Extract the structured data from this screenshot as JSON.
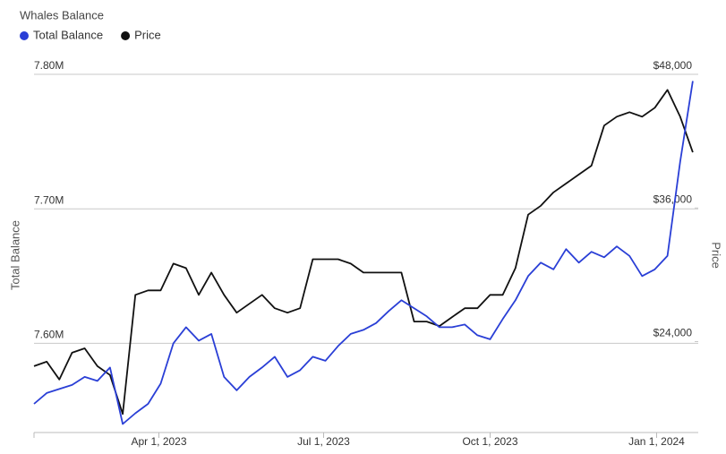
{
  "chart_data": {
    "type": "line",
    "title": "Whales Balance",
    "y_label": "Total Balance",
    "y2_label": "Price",
    "x": [
      "2023-01-22",
      "2023-01-29",
      "2023-02-05",
      "2023-02-12",
      "2023-02-19",
      "2023-02-26",
      "2023-03-05",
      "2023-03-12",
      "2023-03-19",
      "2023-03-26",
      "2023-04-02",
      "2023-04-09",
      "2023-04-16",
      "2023-04-23",
      "2023-04-30",
      "2023-05-07",
      "2023-05-14",
      "2023-05-21",
      "2023-05-28",
      "2023-06-04",
      "2023-06-11",
      "2023-06-18",
      "2023-06-25",
      "2023-07-02",
      "2023-07-09",
      "2023-07-16",
      "2023-07-23",
      "2023-07-30",
      "2023-08-06",
      "2023-08-13",
      "2023-08-20",
      "2023-08-27",
      "2023-09-03",
      "2023-09-10",
      "2023-09-17",
      "2023-09-24",
      "2023-10-01",
      "2023-10-08",
      "2023-10-15",
      "2023-10-22",
      "2023-10-29",
      "2023-11-05",
      "2023-11-12",
      "2023-11-19",
      "2023-11-26",
      "2023-12-03",
      "2023-12-10",
      "2023-12-17",
      "2023-12-24",
      "2023-12-31",
      "2024-01-07",
      "2024-01-14",
      "2024-01-21"
    ],
    "series": [
      {
        "name": "Total Balance",
        "color": "#2a3fd6",
        "axis": "y",
        "values": [
          7555000,
          7563000,
          7566000,
          7569000,
          7575000,
          7572000,
          7582000,
          7540000,
          7548000,
          7555000,
          7570000,
          7600000,
          7612000,
          7602000,
          7607000,
          7575000,
          7565000,
          7575000,
          7582000,
          7590000,
          7575000,
          7580000,
          7590000,
          7587000,
          7598000,
          7607000,
          7610000,
          7615000,
          7624000,
          7632000,
          7626000,
          7620000,
          7612000,
          7612000,
          7614000,
          7606000,
          7603000,
          7618000,
          7632000,
          7650000,
          7660000,
          7655000,
          7670000,
          7660000,
          7668000,
          7664000,
          7672000,
          7665000,
          7650000,
          7655000,
          7665000,
          7735000,
          7795000
        ]
      },
      {
        "name": "Price",
        "color": "#111111",
        "axis": "y2",
        "values": [
          21800,
          22200,
          20600,
          23000,
          23400,
          21800,
          21000,
          17500,
          28200,
          28600,
          28600,
          31000,
          30600,
          28200,
          30200,
          28200,
          26600,
          27400,
          28200,
          27000,
          26600,
          27000,
          31400,
          31400,
          31400,
          31000,
          30200,
          30200,
          30200,
          30200,
          25800,
          25800,
          25400,
          26200,
          27000,
          27000,
          28200,
          28200,
          30600,
          35400,
          36200,
          37400,
          38200,
          39000,
          39800,
          43400,
          44200,
          44600,
          44200,
          45000,
          46600,
          44200,
          41000
        ]
      }
    ],
    "xlim": [
      "2023-01-22",
      "2024-01-24"
    ],
    "xticks": [
      {
        "value": "2023-04-01",
        "label": "Apr 1, 2023"
      },
      {
        "value": "2023-07-01",
        "label": "Jul 1, 2023"
      },
      {
        "value": "2023-10-01",
        "label": "Oct 1, 2023"
      },
      {
        "value": "2024-01-01",
        "label": "Jan 1, 2024"
      }
    ],
    "ylim": [
      7535000,
      7800000
    ],
    "yticks": [
      {
        "value": 7600000,
        "label": "7.60M"
      },
      {
        "value": 7700000,
        "label": "7.70M"
      },
      {
        "value": 7800000,
        "label": "7.80M"
      }
    ],
    "y2lim": [
      16000,
      48000
    ],
    "y2ticks": [
      {
        "value": 24000,
        "label": "$24,000"
      },
      {
        "value": 36000,
        "label": "$36,000"
      },
      {
        "value": 48000,
        "label": "$48,000"
      }
    ],
    "grid": true
  }
}
